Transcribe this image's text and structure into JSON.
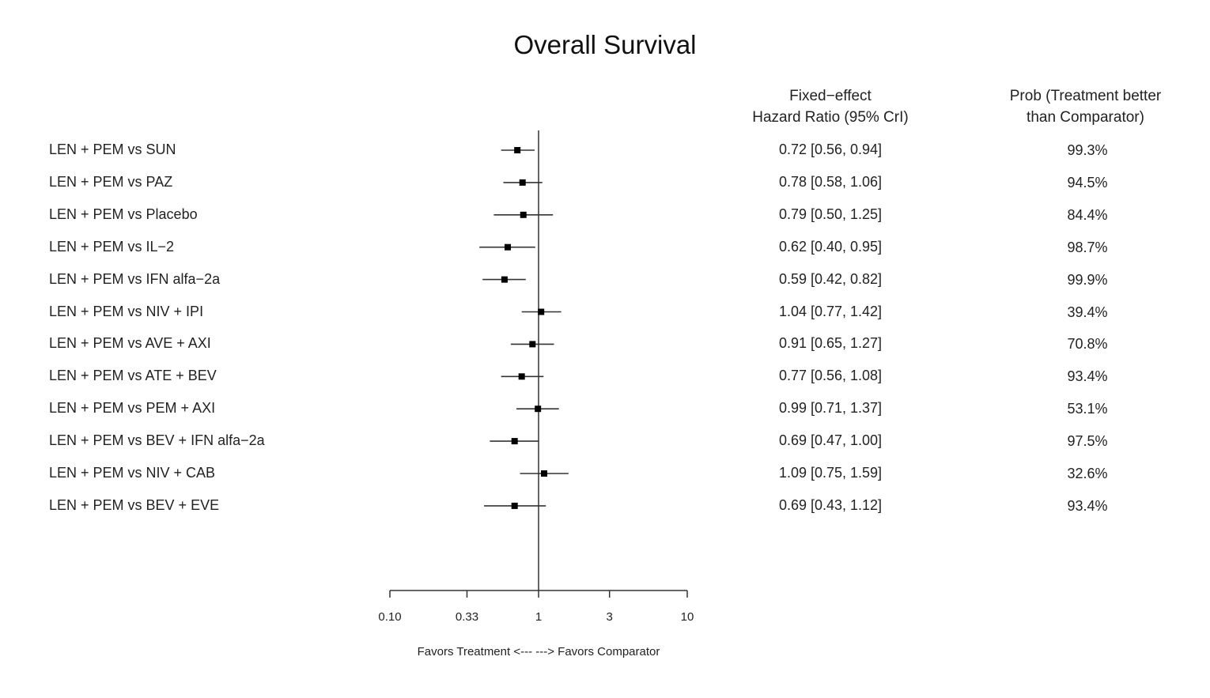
{
  "chart_data": {
    "type": "forest",
    "title": "Overall Survival",
    "column_headers": {
      "hazard_ratio": [
        "Fixed−effect",
        "Hazard Ratio (95% CrI)"
      ],
      "probability": [
        "Prob (Treatment better",
        "than Comparator)"
      ]
    },
    "x_scale": "log",
    "xlim": [
      0.1,
      10
    ],
    "reference_value": 1,
    "x_ticks": [
      {
        "value": 0.1,
        "label": "0.10"
      },
      {
        "value": 0.33,
        "label": "0.33"
      },
      {
        "value": 1,
        "label": "1"
      },
      {
        "value": 3,
        "label": "3"
      },
      {
        "value": 10,
        "label": "10"
      }
    ],
    "x_caption": "Favors Treatment <--- ---> Favors Comparator",
    "rows": [
      {
        "label": "LEN + PEM vs SUN",
        "hr": 0.72,
        "lo": 0.56,
        "hi": 0.94,
        "hr_text": "0.72 [0.56, 0.94]",
        "prob": "99.3%"
      },
      {
        "label": "LEN + PEM vs PAZ",
        "hr": 0.78,
        "lo": 0.58,
        "hi": 1.06,
        "hr_text": "0.78 [0.58, 1.06]",
        "prob": "94.5%"
      },
      {
        "label": "LEN + PEM vs Placebo",
        "hr": 0.79,
        "lo": 0.5,
        "hi": 1.25,
        "hr_text": "0.79 [0.50, 1.25]",
        "prob": "84.4%"
      },
      {
        "label": "LEN + PEM vs IL−2",
        "hr": 0.62,
        "lo": 0.4,
        "hi": 0.95,
        "hr_text": "0.62 [0.40, 0.95]",
        "prob": "98.7%"
      },
      {
        "label": "LEN + PEM vs IFN alfa−2a",
        "hr": 0.59,
        "lo": 0.42,
        "hi": 0.82,
        "hr_text": "0.59 [0.42, 0.82]",
        "prob": "99.9%"
      },
      {
        "label": "LEN + PEM vs NIV + IPI",
        "hr": 1.04,
        "lo": 0.77,
        "hi": 1.42,
        "hr_text": "1.04 [0.77, 1.42]",
        "prob": "39.4%"
      },
      {
        "label": "LEN + PEM vs AVE + AXI",
        "hr": 0.91,
        "lo": 0.65,
        "hi": 1.27,
        "hr_text": "0.91 [0.65, 1.27]",
        "prob": "70.8%"
      },
      {
        "label": "LEN + PEM vs ATE + BEV",
        "hr": 0.77,
        "lo": 0.56,
        "hi": 1.08,
        "hr_text": "0.77 [0.56, 1.08]",
        "prob": "93.4%"
      },
      {
        "label": "LEN + PEM vs PEM + AXI",
        "hr": 0.99,
        "lo": 0.71,
        "hi": 1.37,
        "hr_text": "0.99 [0.71, 1.37]",
        "prob": "53.1%"
      },
      {
        "label": "LEN + PEM vs BEV + IFN alfa−2a",
        "hr": 0.69,
        "lo": 0.47,
        "hi": 1.0,
        "hr_text": "0.69 [0.47, 1.00]",
        "prob": "97.5%"
      },
      {
        "label": "LEN + PEM vs NIV + CAB",
        "hr": 1.09,
        "lo": 0.75,
        "hi": 1.59,
        "hr_text": "1.09 [0.75, 1.59]",
        "prob": "32.6%"
      },
      {
        "label": "LEN + PEM vs BEV + EVE",
        "hr": 0.69,
        "lo": 0.43,
        "hi": 1.12,
        "hr_text": "0.69 [0.43, 1.12]",
        "prob": "93.4%"
      }
    ],
    "colors": {
      "point": "#000000",
      "line": "#333333"
    }
  }
}
